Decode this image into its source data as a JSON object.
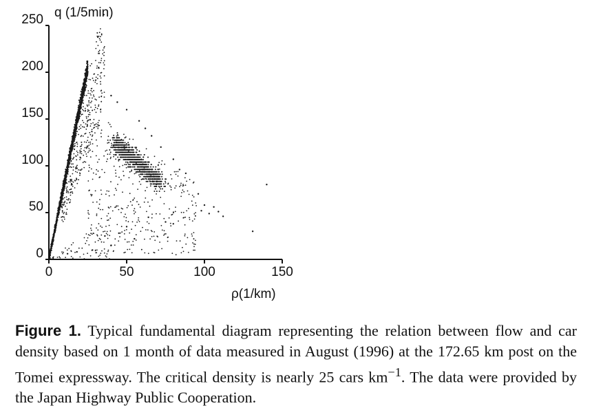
{
  "chart_data": {
    "type": "scatter",
    "xlabel": "ρ(1/km)",
    "ylabel": "q (1/5min)",
    "xlim": [
      0,
      150
    ],
    "ylim": [
      0,
      250
    ],
    "x_ticks": [
      "0",
      "50",
      "100",
      "150"
    ],
    "y_ticks": [
      "0",
      "50",
      "100",
      "150",
      "200",
      "250"
    ],
    "critical_density": 25,
    "free_flow_line": {
      "from": [
        0,
        0
      ],
      "to": [
        25,
        205
      ]
    },
    "congested_cluster": {
      "from": [
        42,
        125
      ],
      "to": [
        72,
        82
      ]
    },
    "outliers": [
      [
        32,
        205
      ],
      [
        40,
        175
      ],
      [
        44,
        168
      ],
      [
        50,
        160
      ],
      [
        58,
        148
      ],
      [
        62,
        140
      ],
      [
        66,
        132
      ],
      [
        72,
        120
      ],
      [
        80,
        107
      ],
      [
        84,
        96
      ],
      [
        88,
        92
      ],
      [
        96,
        70
      ],
      [
        98,
        52
      ],
      [
        100,
        58
      ],
      [
        103,
        49
      ],
      [
        106,
        56
      ],
      [
        109,
        51
      ],
      [
        112,
        46
      ],
      [
        140,
        80
      ],
      [
        131,
        30
      ],
      [
        75,
        40
      ],
      [
        80,
        38
      ],
      [
        55,
        22
      ],
      [
        40,
        15
      ],
      [
        28,
        10
      ],
      [
        18,
        8
      ],
      [
        12,
        6
      ],
      [
        64,
        45
      ],
      [
        50,
        35
      ],
      [
        45,
        28
      ],
      [
        36,
        25
      ]
    ],
    "color": "#1a1a1a"
  },
  "caption": {
    "label": "Figure 1.",
    "text": "Typical fundamental diagram representing the relation between flow and car density based on 1 month of data measured in August (1996) at the 172.65 km post on the Tomei expressway. The critical density is nearly 25 cars km",
    "superscript": "−1",
    "text_end": ". The data were provided by the Japan Highway Public Cooperation."
  }
}
